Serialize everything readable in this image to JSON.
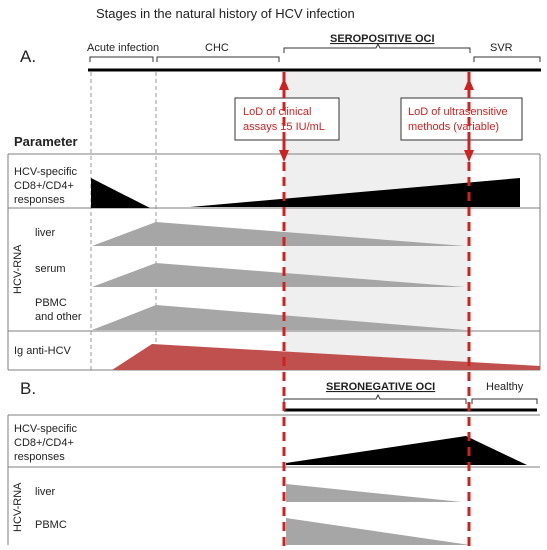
{
  "title": "Stages in the natural history of HCV infection",
  "panel_a": {
    "letter": "A.",
    "stages": [
      "Acute infection",
      "CHC",
      "SEROPOSITIVE OCI",
      "SVR"
    ],
    "lod_clinical": [
      "LoD of clinical",
      "assays 15 IU/mL"
    ],
    "lod_ultra": [
      "LoD of ultrasensitive",
      "methods (variable)"
    ],
    "parameter_header": "Parameter",
    "tcell_label": [
      "HCV-specific",
      "CD8+/CD4+",
      "responses"
    ],
    "rna_group_label": "HCV-RNA",
    "rna_rows": [
      "liver",
      "serum",
      [
        "PBMC",
        "and other"
      ]
    ],
    "ig_label": "Ig anti-HCV"
  },
  "panel_b": {
    "letter": "B.",
    "stages": [
      "SERONEGATIVE OCI",
      "Healthy"
    ],
    "tcell_label": [
      "HCV-specific",
      "CD8+/CD4+",
      "responses"
    ],
    "rna_group_label": "HCV-RNA",
    "rna_rows": [
      "liver",
      "PBMC"
    ]
  },
  "colors": {
    "black": "#000000",
    "gray": "#a6a6a6",
    "red": "#c0504d",
    "dash_red": "#cc2222",
    "shade": "#efefef",
    "border": "#7f7f7f"
  }
}
